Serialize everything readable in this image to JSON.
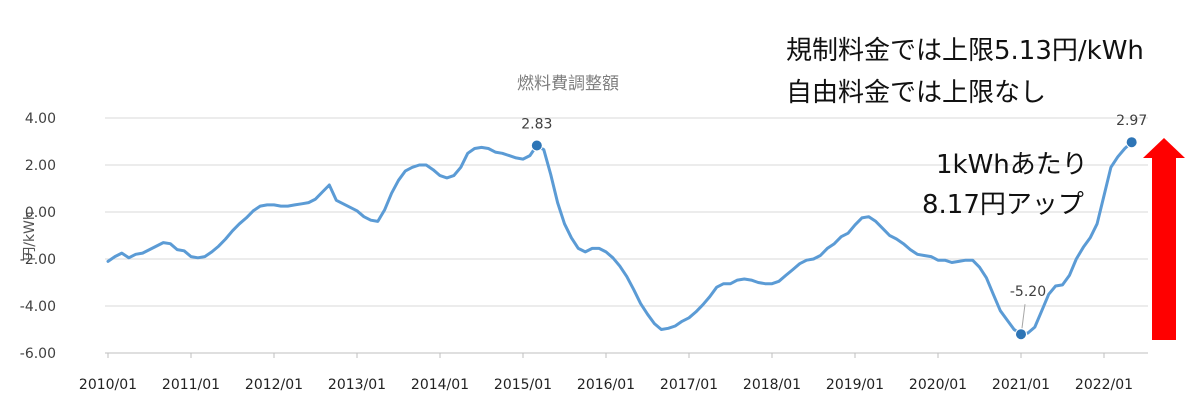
{
  "chart_data": {
    "type": "line",
    "title": "燃料費調整額",
    "ylabel": "円/kWh",
    "ylim": [
      -6.0,
      4.0
    ],
    "yticks": [
      "4.00",
      "2.00",
      "0.00",
      "-2.00",
      "-4.00",
      "-6.00"
    ],
    "yvalues": [
      4,
      2,
      0,
      -2,
      -4,
      -6
    ],
    "xticks": [
      "2010/01",
      "2011/01",
      "2012/01",
      "2013/01",
      "2014/01",
      "2015/01",
      "2016/01",
      "2017/01",
      "2018/01",
      "2019/01",
      "2020/01",
      "2021/01",
      "2022/01"
    ],
    "grid": "horizontal",
    "line_color": "#5b9bd5",
    "series": [
      {
        "x": [
          "2010/01",
          "2010/02",
          "2010/03",
          "2010/04",
          "2010/05",
          "2010/06",
          "2010/07",
          "2010/08",
          "2010/09",
          "2010/10",
          "2010/11",
          "2010/12",
          "2011/01",
          "2011/02",
          "2011/03",
          "2011/04",
          "2011/05",
          "2011/06",
          "2011/07",
          "2011/08",
          "2011/09",
          "2011/10",
          "2011/11",
          "2011/12",
          "2012/01",
          "2012/02",
          "2012/03",
          "2012/04",
          "2012/05",
          "2012/06",
          "2012/07",
          "2012/08",
          "2012/09",
          "2012/10",
          "2012/11",
          "2012/12",
          "2013/01",
          "2013/02",
          "2013/03",
          "2013/04",
          "2013/05",
          "2013/06",
          "2013/07",
          "2013/08",
          "2013/09",
          "2013/10",
          "2013/11",
          "2013/12",
          "2014/01",
          "2014/02",
          "2014/03",
          "2014/04",
          "2014/05",
          "2014/06",
          "2014/07",
          "2014/08",
          "2014/09",
          "2014/10",
          "2014/11",
          "2014/12",
          "2015/01",
          "2015/02",
          "2015/03",
          "2015/04",
          "2015/05",
          "2015/06",
          "2015/07",
          "2015/08",
          "2015/09",
          "2015/10",
          "2015/11",
          "2015/12",
          "2016/01",
          "2016/02",
          "2016/03",
          "2016/04",
          "2016/05",
          "2016/06",
          "2016/07",
          "2016/08",
          "2016/09",
          "2016/10",
          "2016/11",
          "2016/12",
          "2017/01",
          "2017/02",
          "2017/03",
          "2017/04",
          "2017/05",
          "2017/06",
          "2017/07",
          "2017/08",
          "2017/09",
          "2017/10",
          "2017/11",
          "2017/12",
          "2018/01",
          "2018/02",
          "2018/03",
          "2018/04",
          "2018/05",
          "2018/06",
          "2018/07",
          "2018/08",
          "2018/09",
          "2018/10",
          "2018/11",
          "2018/12",
          "2019/01",
          "2019/02",
          "2019/03",
          "2019/04",
          "2019/05",
          "2019/06",
          "2019/07",
          "2019/08",
          "2019/09",
          "2019/10",
          "2019/11",
          "2019/12",
          "2020/01",
          "2020/02",
          "2020/03",
          "2020/04",
          "2020/05",
          "2020/06",
          "2020/07",
          "2020/08",
          "2020/09",
          "2020/10",
          "2020/11",
          "2020/12",
          "2021/01",
          "2021/02",
          "2021/03",
          "2021/04",
          "2021/05",
          "2021/06",
          "2021/07",
          "2021/08",
          "2021/09",
          "2021/10",
          "2021/11",
          "2021/12",
          "2022/01",
          "2022/02",
          "2022/03",
          "2022/04",
          "2022/05"
        ],
        "values": [
          -2.1,
          -1.9,
          -1.75,
          -1.95,
          -1.8,
          -1.75,
          -1.6,
          -1.45,
          -1.3,
          -1.35,
          -1.6,
          -1.65,
          -1.9,
          -1.95,
          -1.9,
          -1.7,
          -1.45,
          -1.15,
          -0.8,
          -0.5,
          -0.25,
          0.05,
          0.25,
          0.3,
          0.3,
          0.25,
          0.25,
          0.3,
          0.35,
          0.4,
          0.55,
          0.85,
          1.15,
          0.5,
          0.35,
          0.2,
          0.05,
          -0.2,
          -0.35,
          -0.4,
          0.1,
          0.8,
          1.35,
          1.75,
          1.9,
          2.0,
          2.0,
          1.8,
          1.55,
          1.45,
          1.55,
          1.9,
          2.5,
          2.7,
          2.75,
          2.7,
          2.55,
          2.5,
          2.4,
          2.3,
          2.25,
          2.4,
          2.83,
          2.65,
          1.6,
          0.4,
          -0.5,
          -1.1,
          -1.55,
          -1.7,
          -1.55,
          -1.55,
          -1.7,
          -1.95,
          -2.3,
          -2.75,
          -3.3,
          -3.9,
          -4.35,
          -4.75,
          -5.0,
          -4.95,
          -4.85,
          -4.65,
          -4.5,
          -4.25,
          -3.95,
          -3.6,
          -3.2,
          -3.05,
          -3.05,
          -2.9,
          -2.85,
          -2.9,
          -3.0,
          -3.05,
          -3.05,
          -2.95,
          -2.7,
          -2.45,
          -2.2,
          -2.05,
          -2.0,
          -1.85,
          -1.55,
          -1.35,
          -1.05,
          -0.9,
          -0.55,
          -0.25,
          -0.2,
          -0.4,
          -0.7,
          -1.0,
          -1.15,
          -1.35,
          -1.6,
          -1.8,
          -1.85,
          -1.9,
          -2.05,
          -2.05,
          -2.15,
          -2.1,
          -2.05,
          -2.05,
          -2.35,
          -2.8,
          -3.5,
          -4.2,
          -4.6,
          -5.0,
          -5.2,
          -5.15,
          -4.9,
          -4.2,
          -3.5,
          -3.15,
          -3.1,
          -2.7,
          -2.0,
          -1.5,
          -1.1,
          -0.5,
          0.7,
          1.9,
          2.35,
          2.7,
          2.97
        ]
      }
    ],
    "markers": [
      {
        "x": "2015/03",
        "value": 2.83,
        "label": "2.83"
      },
      {
        "x": "2021/01",
        "value": -5.2,
        "label": "-5.20"
      },
      {
        "x": "2022/05",
        "value": 2.97,
        "label": "2.97"
      }
    ]
  },
  "annotations": {
    "limit_line1": "規制料金では上限5.13円/kWh",
    "limit_line2": "自由料金では上限なし",
    "increase_line1": "1kWhあたり",
    "increase_line2": "8.17円アップ",
    "arrow_color": "#ff0000"
  }
}
